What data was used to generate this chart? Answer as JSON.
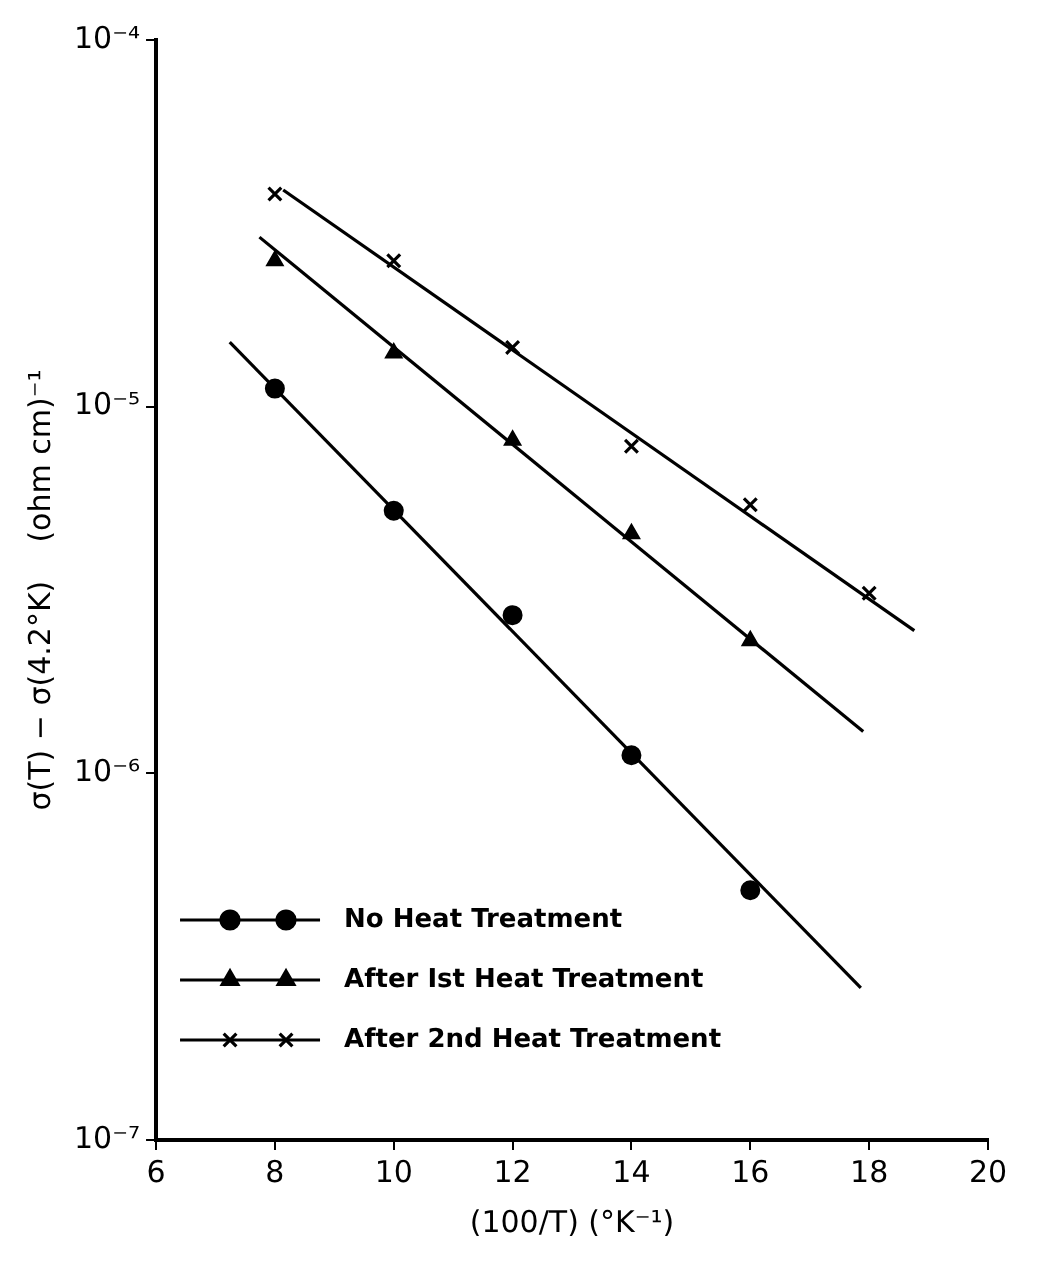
{
  "chart_data": {
    "type": "scatter",
    "xlabel": "(100/T) (°K⁻¹)",
    "ylabel": "σ(T) − σ(4.2°K)    (ohm cm)⁻¹",
    "log": "y",
    "grid": false,
    "legend": "bottom left",
    "xlim": [
      6,
      20
    ],
    "xticks": [
      6,
      8,
      10,
      12,
      14,
      16,
      18,
      20
    ],
    "ylim": [
      1e-07,
      0.0001
    ],
    "yticks": [
      {
        "value": 1e-07,
        "label": "10⁻⁷"
      },
      {
        "value": 1e-06,
        "label": "10⁻⁶"
      },
      {
        "value": 1e-05,
        "label": "10⁻⁵"
      },
      {
        "value": 0.0001,
        "label": "10⁻⁴"
      }
    ],
    "series": [
      {
        "name": "No Heat Treatment",
        "type": "scatter",
        "marker": "circle",
        "color": "#000000",
        "x": [
          8,
          10,
          12,
          14,
          16
        ],
        "values": [
          1.12e-05,
          5.2e-06,
          2.7e-06,
          1.12e-06,
          4.8e-07
        ]
      },
      {
        "name": "After Ist Heat Treatment",
        "type": "scatter",
        "marker": "triangle",
        "color": "#000000",
        "x": [
          8,
          10,
          12,
          14,
          16
        ],
        "values": [
          2.5e-05,
          1.4e-05,
          8.1e-06,
          4.5e-06,
          2.3e-06
        ]
      },
      {
        "name": "After 2nd Heat Treatment",
        "type": "scatter",
        "marker": "cross",
        "color": "#000000",
        "x": [
          8,
          10,
          12,
          14,
          16,
          18
        ],
        "values": [
          3.8e-05,
          2.5e-05,
          1.45e-05,
          7.8e-06,
          5.4e-06,
          3.1e-06
        ]
      },
      {
        "type": "line",
        "marker": "none",
        "line_style": "solid",
        "color": "#000000",
        "x": [
          7.24,
          17.86
        ],
        "values": [
          1.5e-05,
          2.6e-07
        ]
      },
      {
        "type": "line",
        "marker": "none",
        "line_style": "solid",
        "color": "#000000",
        "x": [
          7.74,
          17.9
        ],
        "values": [
          2.9e-05,
          1.3e-06
        ]
      },
      {
        "type": "line",
        "marker": "none",
        "line_style": "solid",
        "color": "#000000",
        "x": [
          8.14,
          18.76
        ],
        "values": [
          3.9e-05,
          2.45e-06
        ]
      }
    ]
  }
}
